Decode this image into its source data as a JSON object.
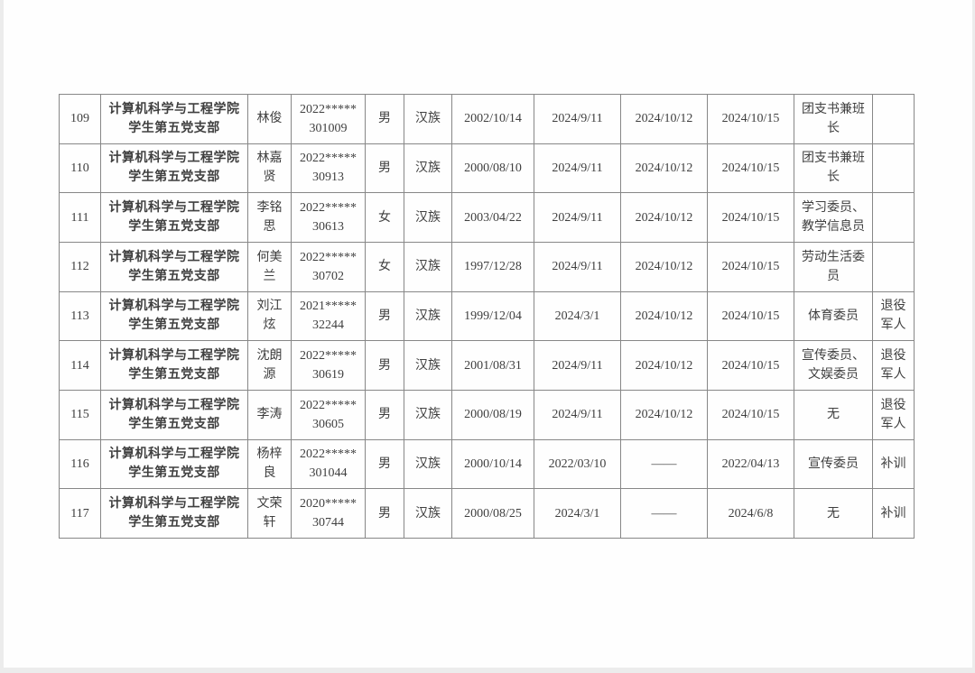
{
  "colors": {
    "text": "#3f3f3f",
    "table_border": "#878787",
    "page_background": "#fefefe",
    "page_edge": "#ececec"
  },
  "table": {
    "rows": [
      {
        "no": "109",
        "branch_lines": [
          "计算机科学与工程学院",
          "学生第五党支部"
        ],
        "name": "林俊",
        "student_id_lines": [
          "2022*****",
          "301009"
        ],
        "gender": "男",
        "ethnicity": "汉族",
        "birth_date": "2002/10/14",
        "date1": "2024/9/11",
        "date2": "2024/10/12",
        "date3": "2024/10/15",
        "position": "团支书兼班长",
        "note": ""
      },
      {
        "no": "110",
        "branch_lines": [
          "计算机科学与工程学院",
          "学生第五党支部"
        ],
        "name": "林嘉贤",
        "student_id_lines": [
          "2022*****",
          "30913"
        ],
        "gender": "男",
        "ethnicity": "汉族",
        "birth_date": "2000/08/10",
        "date1": "2024/9/11",
        "date2": "2024/10/12",
        "date3": "2024/10/15",
        "position": "团支书兼班长",
        "note": ""
      },
      {
        "no": "111",
        "branch_lines": [
          "计算机科学与工程学院",
          "学生第五党支部"
        ],
        "name": "李铭思",
        "student_id_lines": [
          "2022*****",
          "30613"
        ],
        "gender": "女",
        "ethnicity": "汉族",
        "birth_date": "2003/04/22",
        "date1": "2024/9/11",
        "date2": "2024/10/12",
        "date3": "2024/10/15",
        "position": "学习委员、教学信息员",
        "note": ""
      },
      {
        "no": "112",
        "branch_lines": [
          "计算机科学与工程学院",
          "学生第五党支部"
        ],
        "name": "何美兰",
        "student_id_lines": [
          "2022*****",
          "30702"
        ],
        "gender": "女",
        "ethnicity": "汉族",
        "birth_date": "1997/12/28",
        "date1": "2024/9/11",
        "date2": "2024/10/12",
        "date3": "2024/10/15",
        "position": "劳动生活委员",
        "note": ""
      },
      {
        "no": "113",
        "branch_lines": [
          "计算机科学与工程学院",
          "学生第五党支部"
        ],
        "name": "刘江炫",
        "student_id_lines": [
          "2021*****",
          "32244"
        ],
        "gender": "男",
        "ethnicity": "汉族",
        "birth_date": "1999/12/04",
        "date1": "2024/3/1",
        "date2": "2024/10/12",
        "date3": "2024/10/15",
        "position": "体育委员",
        "note": "退役军人"
      },
      {
        "no": "114",
        "branch_lines": [
          "计算机科学与工程学院",
          "学生第五党支部"
        ],
        "name": "沈朗源",
        "student_id_lines": [
          "2022*****",
          "30619"
        ],
        "gender": "男",
        "ethnicity": "汉族",
        "birth_date": "2001/08/31",
        "date1": "2024/9/11",
        "date2": "2024/10/12",
        "date3": "2024/10/15",
        "position": "宣传委员、文娱委员",
        "note": "退役军人"
      },
      {
        "no": "115",
        "branch_lines": [
          "计算机科学与工程学院",
          "学生第五党支部"
        ],
        "name": "李涛",
        "student_id_lines": [
          "2022*****",
          "30605"
        ],
        "gender": "男",
        "ethnicity": "汉族",
        "birth_date": "2000/08/19",
        "date1": "2024/9/11",
        "date2": "2024/10/12",
        "date3": "2024/10/15",
        "position": "无",
        "note": "退役军人"
      },
      {
        "no": "116",
        "branch_lines": [
          "计算机科学与工程学院",
          "学生第五党支部"
        ],
        "name": "杨梓良",
        "student_id_lines": [
          "2022*****",
          "301044"
        ],
        "gender": "男",
        "ethnicity": "汉族",
        "birth_date": "2000/10/14",
        "date1": "2022/03/10",
        "date2": "——",
        "date3": "2022/04/13",
        "position": "宣传委员",
        "note": "补训"
      },
      {
        "no": "117",
        "branch_lines": [
          "计算机科学与工程学院",
          "学生第五党支部"
        ],
        "name": "文荣轩",
        "student_id_lines": [
          "2020*****",
          "30744"
        ],
        "gender": "男",
        "ethnicity": "汉族",
        "birth_date": "2000/08/25",
        "date1": "2024/3/1",
        "date2": "——",
        "date3": "2024/6/8",
        "position": "无",
        "note": "补训"
      }
    ]
  }
}
